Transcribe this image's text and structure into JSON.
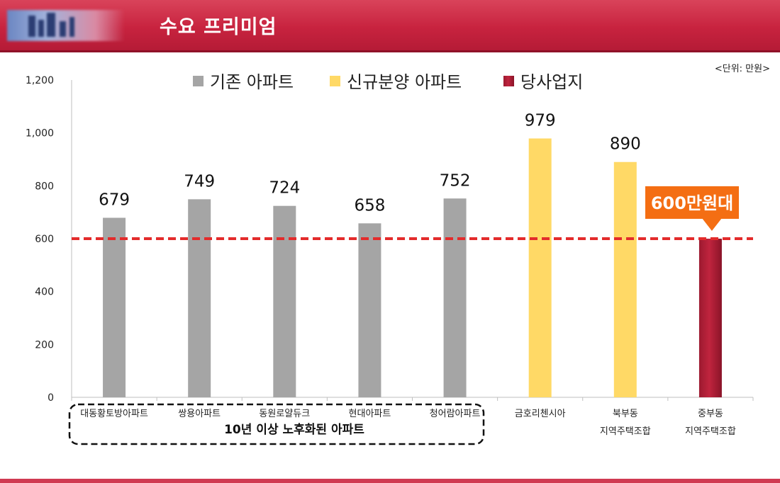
{
  "header": {
    "title": "수요 프리미엄"
  },
  "unit_label": "<단위: 만원>",
  "chart_data": {
    "type": "bar",
    "categories": [
      "대동황토방아파트",
      "쌍용아파트",
      "동원로얄듀크",
      "현대아파트",
      "청어람아파트",
      "금호리첸시아",
      "북부동\n지역주택조합",
      "중부동\n지역주택조합"
    ],
    "values": [
      679,
      749,
      724,
      658,
      752,
      979,
      890,
      600
    ],
    "data_labels": [
      "679",
      "749",
      "724",
      "658",
      "752",
      "979",
      "890",
      ""
    ],
    "groups": [
      0,
      0,
      0,
      0,
      0,
      1,
      1,
      2
    ],
    "legend": [
      "기존 아파트",
      "신규분양 아파트",
      "당사업지"
    ],
    "colors": [
      "#a5a5a5",
      "#ffd966",
      "#c0243e"
    ],
    "ylim": [
      0,
      1200
    ],
    "yticks": [
      0,
      200,
      400,
      600,
      800,
      1000,
      1200
    ],
    "ytick_labels": [
      "0",
      "200",
      "400",
      "600",
      "800",
      "1,000",
      "1,200"
    ],
    "reference_line": {
      "value": 600,
      "color": "#e32b2b"
    },
    "callout": {
      "text": "600만원대",
      "color": "#f46e13"
    },
    "group_box_label": "10년 이상 노후화된 아파트",
    "grid": false,
    "legend_position": "top"
  }
}
